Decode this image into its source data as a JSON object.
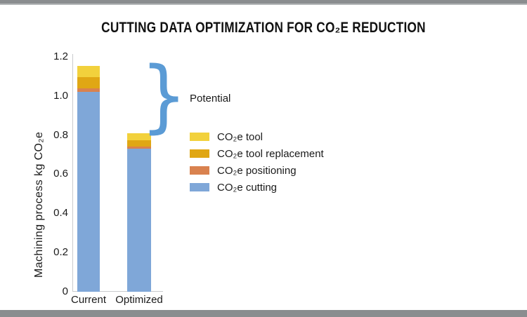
{
  "title": "CUTTING DATA OPTIMIZATION FOR CO₂E REDUCTION",
  "annotation": {
    "brace_glyph": "}",
    "label": "Potential",
    "color": "#5b9bd5"
  },
  "frame": {
    "top_bar_color": "#8a8d8f",
    "bottom_bar_color": "#8a8d8f"
  },
  "chart_data": {
    "type": "bar",
    "stacked": true,
    "title": "CUTTING DATA OPTIMIZATION FOR CO₂E REDUCTION",
    "xlabel": "",
    "ylabel": "Machining process kg CO₂e",
    "categories": [
      "Current",
      "Optimized"
    ],
    "series": [
      {
        "name": "CO₂e cutting",
        "color": "#7fa7d8",
        "values": [
          1.02,
          0.73
        ]
      },
      {
        "name": "CO₂e positioning",
        "color": "#d9824f",
        "values": [
          0.02,
          0.01
        ]
      },
      {
        "name": "CO₂e tool replacement",
        "color": "#e0a714",
        "values": [
          0.055,
          0.035
        ]
      },
      {
        "name": "CO₂e tool",
        "color": "#f2d13c",
        "values": [
          0.06,
          0.035
        ]
      }
    ],
    "totals": [
      1.155,
      0.81
    ],
    "ylim": [
      0,
      1.2
    ],
    "yticks": [
      "1.2",
      "1.0",
      "0.8",
      "0.6",
      "0.4",
      "0.2",
      "0"
    ],
    "ytick_values": [
      1.2,
      1.0,
      0.8,
      0.6,
      0.4,
      0.2,
      0
    ],
    "grid": false,
    "legend_position": "right-of-plot",
    "legend": [
      "CO₂e tool",
      "CO₂e tool replacement",
      "CO₂e positioning",
      "CO₂e cutting"
    ],
    "axis_color": "#c9cbcd"
  }
}
